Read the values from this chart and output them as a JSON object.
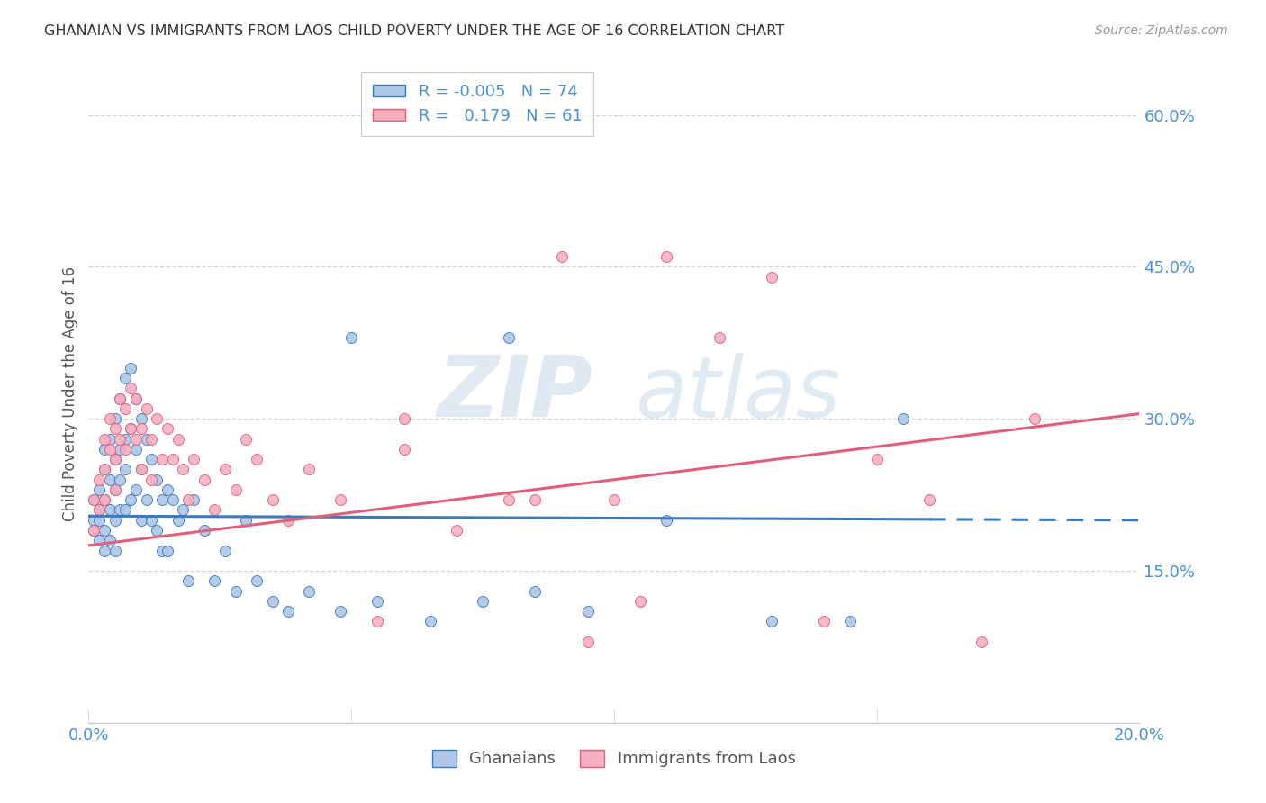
{
  "title": "GHANAIAN VS IMMIGRANTS FROM LAOS CHILD POVERTY UNDER THE AGE OF 16 CORRELATION CHART",
  "source": "Source: ZipAtlas.com",
  "ylabel": "Child Poverty Under the Age of 16",
  "xmin": 0.0,
  "xmax": 0.2,
  "ymin": 0.0,
  "ymax": 0.65,
  "yticks": [
    0.15,
    0.3,
    0.45,
    0.6
  ],
  "ytick_labels": [
    "15.0%",
    "30.0%",
    "45.0%",
    "60.0%"
  ],
  "xticks": [
    0.0,
    0.05,
    0.1,
    0.15,
    0.2
  ],
  "xtick_labels": [
    "0.0%",
    "",
    "",
    "",
    "20.0%"
  ],
  "ghanaian_color": "#aec6e8",
  "laos_color": "#f5afc0",
  "trend_ghanaian_color": "#3a7bbf",
  "trend_laos_color": "#e0607a",
  "R_ghanaian": -0.005,
  "N_ghanaian": 74,
  "R_laos": 0.179,
  "N_laos": 61,
  "legend_label_1": "Ghanaians",
  "legend_label_2": "Immigrants from Laos",
  "watermark_ZIP": "ZIP",
  "watermark_atlas": "atlas",
  "background_color": "#ffffff",
  "grid_color": "#cccccc",
  "title_color": "#333333",
  "axis_label_color": "#4a90d9",
  "trend_g_x0": 0.0,
  "trend_g_y0": 0.204,
  "trend_g_x1": 0.2,
  "trend_g_y1": 0.2,
  "trend_l_x0": 0.0,
  "trend_l_y0": 0.175,
  "trend_l_x1": 0.2,
  "trend_l_y1": 0.305,
  "ghanaian_scatter_x": [
    0.001,
    0.001,
    0.001,
    0.002,
    0.002,
    0.002,
    0.002,
    0.003,
    0.003,
    0.003,
    0.003,
    0.003,
    0.004,
    0.004,
    0.004,
    0.004,
    0.005,
    0.005,
    0.005,
    0.005,
    0.005,
    0.006,
    0.006,
    0.006,
    0.006,
    0.007,
    0.007,
    0.007,
    0.007,
    0.008,
    0.008,
    0.008,
    0.009,
    0.009,
    0.009,
    0.01,
    0.01,
    0.01,
    0.011,
    0.011,
    0.012,
    0.012,
    0.013,
    0.013,
    0.014,
    0.014,
    0.015,
    0.015,
    0.016,
    0.017,
    0.018,
    0.019,
    0.02,
    0.022,
    0.024,
    0.026,
    0.028,
    0.03,
    0.032,
    0.035,
    0.038,
    0.042,
    0.048,
    0.055,
    0.065,
    0.075,
    0.085,
    0.095,
    0.11,
    0.13,
    0.145,
    0.155,
    0.08,
    0.05
  ],
  "ghanaian_scatter_y": [
    0.2,
    0.22,
    0.19,
    0.21,
    0.23,
    0.2,
    0.18,
    0.27,
    0.22,
    0.19,
    0.25,
    0.17,
    0.28,
    0.24,
    0.21,
    0.18,
    0.3,
    0.26,
    0.23,
    0.2,
    0.17,
    0.32,
    0.27,
    0.24,
    0.21,
    0.34,
    0.28,
    0.25,
    0.21,
    0.35,
    0.29,
    0.22,
    0.32,
    0.27,
    0.23,
    0.3,
    0.25,
    0.2,
    0.28,
    0.22,
    0.26,
    0.2,
    0.24,
    0.19,
    0.22,
    0.17,
    0.23,
    0.17,
    0.22,
    0.2,
    0.21,
    0.14,
    0.22,
    0.19,
    0.14,
    0.17,
    0.13,
    0.2,
    0.14,
    0.12,
    0.11,
    0.13,
    0.11,
    0.12,
    0.1,
    0.12,
    0.13,
    0.11,
    0.2,
    0.1,
    0.1,
    0.3,
    0.38,
    0.38
  ],
  "laos_scatter_x": [
    0.001,
    0.001,
    0.002,
    0.002,
    0.003,
    0.003,
    0.003,
    0.004,
    0.004,
    0.005,
    0.005,
    0.005,
    0.006,
    0.006,
    0.007,
    0.007,
    0.008,
    0.008,
    0.009,
    0.009,
    0.01,
    0.01,
    0.011,
    0.012,
    0.012,
    0.013,
    0.014,
    0.015,
    0.016,
    0.017,
    0.018,
    0.019,
    0.02,
    0.022,
    0.024,
    0.026,
    0.028,
    0.03,
    0.032,
    0.035,
    0.038,
    0.042,
    0.048,
    0.055,
    0.06,
    0.07,
    0.085,
    0.095,
    0.105,
    0.11,
    0.12,
    0.13,
    0.15,
    0.16,
    0.17,
    0.18,
    0.06,
    0.08,
    0.09,
    0.1,
    0.14
  ],
  "laos_scatter_y": [
    0.22,
    0.19,
    0.24,
    0.21,
    0.28,
    0.25,
    0.22,
    0.3,
    0.27,
    0.29,
    0.26,
    0.23,
    0.32,
    0.28,
    0.31,
    0.27,
    0.33,
    0.29,
    0.32,
    0.28,
    0.29,
    0.25,
    0.31,
    0.28,
    0.24,
    0.3,
    0.26,
    0.29,
    0.26,
    0.28,
    0.25,
    0.22,
    0.26,
    0.24,
    0.21,
    0.25,
    0.23,
    0.28,
    0.26,
    0.22,
    0.2,
    0.25,
    0.22,
    0.1,
    0.3,
    0.19,
    0.22,
    0.08,
    0.12,
    0.46,
    0.38,
    0.44,
    0.26,
    0.22,
    0.08,
    0.3,
    0.27,
    0.22,
    0.46,
    0.22,
    0.1
  ]
}
